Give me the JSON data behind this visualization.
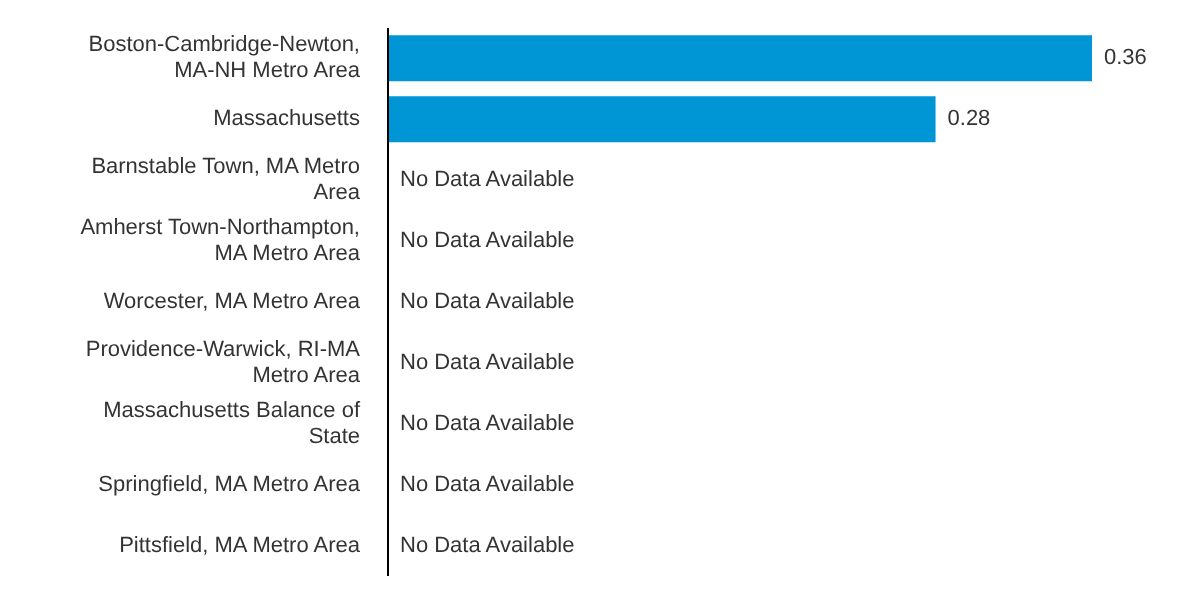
{
  "chart_data": {
    "type": "bar",
    "orientation": "horizontal",
    "categories": [
      "Boston-Cambridge-Newton, MA-NH Metro Area",
      "Massachusetts",
      "Barnstable Town, MA Metro Area",
      "Amherst Town-Northampton, MA Metro Area",
      "Worcester, MA Metro Area",
      "Providence-Warwick, RI-MA Metro Area",
      "Massachusetts Balance of State",
      "Springfield, MA Metro Area",
      "Pittsfield, MA Metro Area"
    ],
    "color": "#0096d6",
    "values": [
      0.36,
      0.28,
      null,
      null,
      null,
      null,
      null,
      null,
      null
    ],
    "value_labels": [
      "0.36",
      "0.28",
      "No Data Available",
      "No Data Available",
      "No Data Available",
      "No Data Available",
      "No Data Available",
      "No Data Available",
      "No Data Available"
    ],
    "grid": false,
    "legend": false
  }
}
